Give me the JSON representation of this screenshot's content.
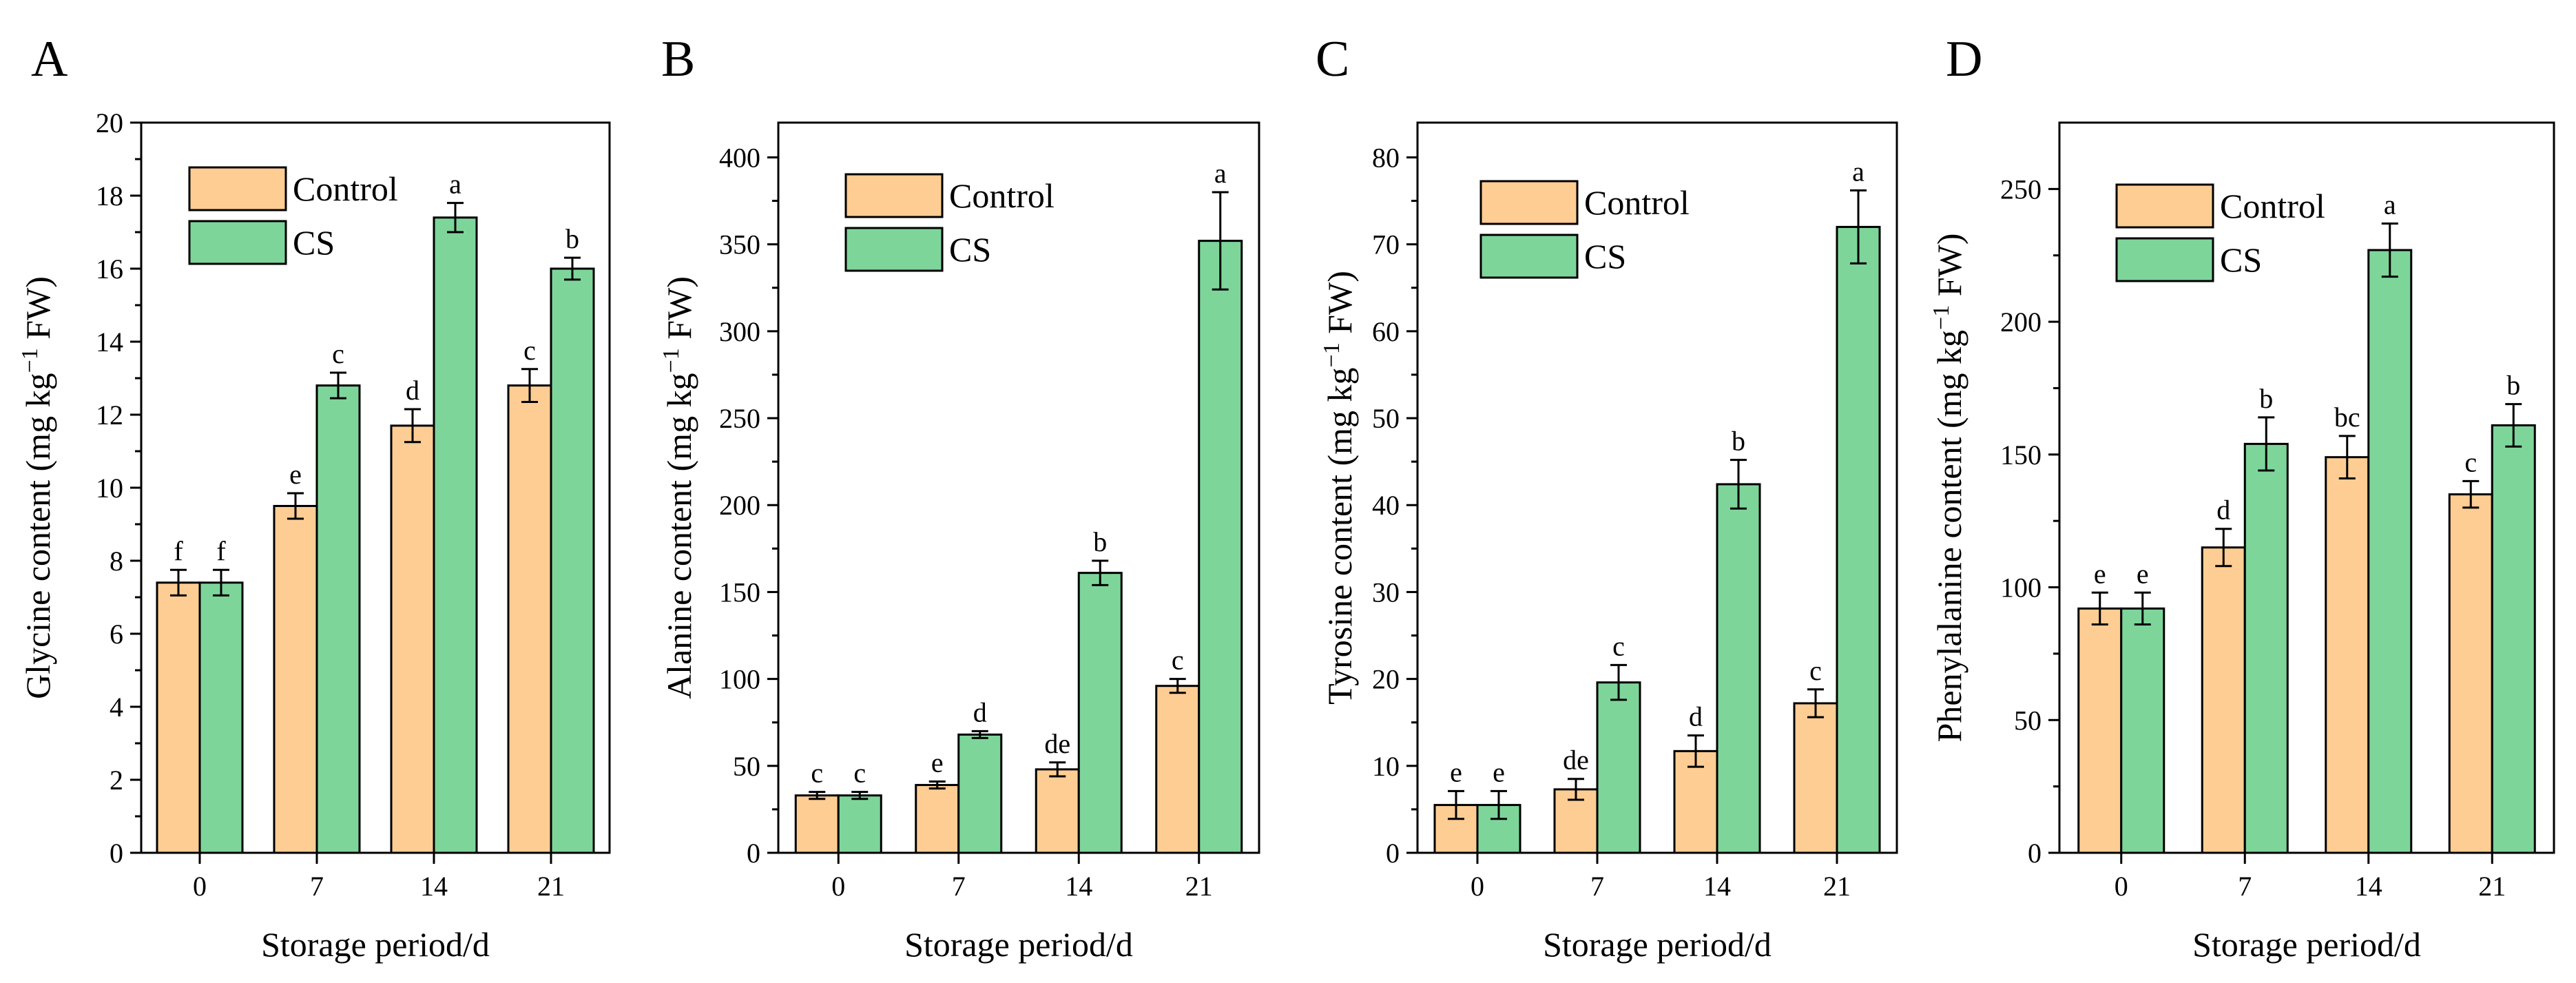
{
  "colors": {
    "control": "#FDCD94",
    "cs": "#7ED59A",
    "stroke": "#000000"
  },
  "charts": [
    {
      "type": "bar",
      "panel": "A",
      "ylabel": {
        "pre": "Glycine content (mg kg",
        "sup": "−1",
        "post": " FW)"
      },
      "xlabel": "Storage period/d",
      "categories": [
        "0",
        "7",
        "14",
        "21"
      ],
      "ylim": [
        0,
        20
      ],
      "yticks": [
        0,
        2,
        4,
        6,
        8,
        10,
        12,
        14,
        16,
        18,
        20
      ],
      "legend": [
        "Control",
        "CS"
      ],
      "series": [
        {
          "name": "Control",
          "values": [
            7.4,
            9.5,
            11.7,
            12.8
          ],
          "errors": [
            0.35,
            0.35,
            0.45,
            0.45
          ],
          "letters": [
            "f",
            "e",
            "d",
            "c"
          ]
        },
        {
          "name": "CS",
          "values": [
            7.4,
            12.8,
            17.4,
            16.0
          ],
          "errors": [
            0.35,
            0.35,
            0.4,
            0.3
          ],
          "letters": [
            "f",
            "c",
            "a",
            "b"
          ]
        }
      ]
    },
    {
      "type": "bar",
      "panel": "B",
      "ylabel": {
        "pre": "Alanine content (mg kg",
        "sup": "−1",
        "post": " FW)"
      },
      "xlabel": "Storage period/d",
      "categories": [
        "0",
        "7",
        "14",
        "21"
      ],
      "ylim": [
        0,
        420
      ],
      "yticks": [
        0,
        50,
        100,
        150,
        200,
        250,
        300,
        350,
        400
      ],
      "legend": [
        "Control",
        "CS"
      ],
      "series": [
        {
          "name": "Control",
          "values": [
            33,
            39,
            48,
            96
          ],
          "errors": [
            2,
            2,
            4,
            4
          ],
          "letters": [
            "c",
            "e",
            "de",
            "c"
          ]
        },
        {
          "name": "CS",
          "values": [
            33,
            68,
            161,
            352
          ],
          "errors": [
            2,
            2,
            7,
            28
          ],
          "letters": [
            "c",
            "d",
            "b",
            "a"
          ]
        }
      ]
    },
    {
      "type": "bar",
      "panel": "C",
      "ylabel": {
        "pre": "Tyrosine content (mg kg",
        "sup": "−1",
        "post": " FW)"
      },
      "xlabel": "Storage period/d",
      "categories": [
        "0",
        "7",
        "14",
        "21"
      ],
      "ylim": [
        0,
        84
      ],
      "yticks": [
        0,
        10,
        20,
        30,
        40,
        50,
        60,
        70,
        80
      ],
      "legend": [
        "Control",
        "CS"
      ],
      "series": [
        {
          "name": "Control",
          "values": [
            5.5,
            7.3,
            11.7,
            17.2
          ],
          "errors": [
            1.6,
            1.2,
            1.8,
            1.6
          ],
          "letters": [
            "e",
            "de",
            "d",
            "c"
          ]
        },
        {
          "name": "CS",
          "values": [
            5.5,
            19.6,
            42.4,
            72.0
          ],
          "errors": [
            1.6,
            2.0,
            2.8,
            4.2
          ],
          "letters": [
            "e",
            "c",
            "b",
            "a"
          ]
        }
      ]
    },
    {
      "type": "bar",
      "panel": "D",
      "ylabel": {
        "pre": "Phenylalanine content (mg kg",
        "sup": "−1",
        "post": " FW)"
      },
      "xlabel": "Storage period/d",
      "categories": [
        "0",
        "7",
        "14",
        "21"
      ],
      "ylim": [
        0,
        275
      ],
      "yticks": [
        0,
        50,
        100,
        150,
        200,
        250
      ],
      "legend": [
        "Control",
        "CS"
      ],
      "series": [
        {
          "name": "Control",
          "values": [
            92,
            115,
            149,
            135
          ],
          "errors": [
            6,
            7,
            8,
            5
          ],
          "letters": [
            "e",
            "d",
            "bc",
            "c"
          ]
        },
        {
          "name": "CS",
          "values": [
            92,
            154,
            227,
            161
          ],
          "errors": [
            6,
            10,
            10,
            8
          ],
          "letters": [
            "e",
            "b",
            "a",
            "b"
          ]
        }
      ]
    }
  ]
}
